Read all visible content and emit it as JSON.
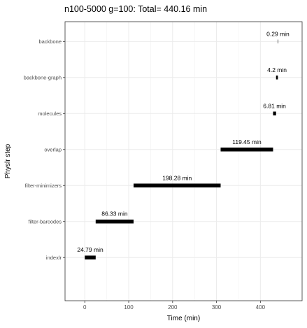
{
  "chart_data": {
    "type": "bar",
    "orientation": "horizontal-gantt",
    "title": "n100-5000 g=100: Total=  440.16  min",
    "xlabel": "Time (min)",
    "ylabel": "Physlr step",
    "xlim": [
      -45,
      495
    ],
    "x_ticks": [
      0,
      100,
      200,
      300,
      400
    ],
    "x_tick_labels": [
      "0",
      "100",
      "200",
      "300",
      "400"
    ],
    "grid": true,
    "legend": "none",
    "bar_color": "#000000",
    "categories": [
      "backbone",
      "backbone-graph",
      "molecules",
      "overlap",
      "filter-minimizers",
      "filter-barcodes",
      "indexlr"
    ],
    "tasks": [
      {
        "step": "backbone",
        "start": 439.87,
        "end": 440.16,
        "label": "0.29 min"
      },
      {
        "step": "backbone-graph",
        "start": 435.67,
        "end": 439.87,
        "label": "4.2 min"
      },
      {
        "step": "molecules",
        "start": 428.86,
        "end": 435.67,
        "label": "6.81 min"
      },
      {
        "step": "overlap",
        "start": 309.41,
        "end": 428.86,
        "label": "119.45 min"
      },
      {
        "step": "filter-minimizers",
        "start": 111.13,
        "end": 309.41,
        "label": "198.28 min"
      },
      {
        "step": "filter-barcodes",
        "start": 24.79,
        "end": 111.12,
        "label": "86.33 min"
      },
      {
        "step": "indexlr",
        "start": 0,
        "end": 24.79,
        "label": "24.79 min"
      }
    ]
  }
}
